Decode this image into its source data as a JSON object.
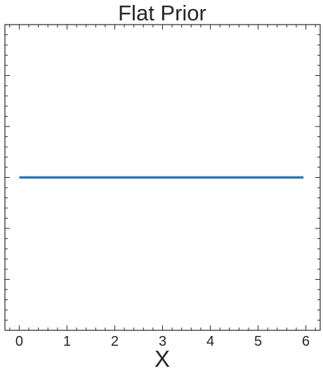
{
  "chart_data": {
    "type": "line",
    "title": "Flat Prior",
    "xlabel": "X",
    "ylabel": "",
    "xlim": [
      -0.3,
      6.3
    ],
    "ylim": [
      0,
      1
    ],
    "x_ticks": [
      "0",
      "1",
      "2",
      "3",
      "4",
      "5",
      "6"
    ],
    "y_tick_labels_shown": false,
    "grid": false,
    "series": [
      {
        "x": [
          0,
          5.95
        ],
        "y": [
          0.5,
          0.5
        ],
        "color": "#2f78b5"
      }
    ]
  }
}
